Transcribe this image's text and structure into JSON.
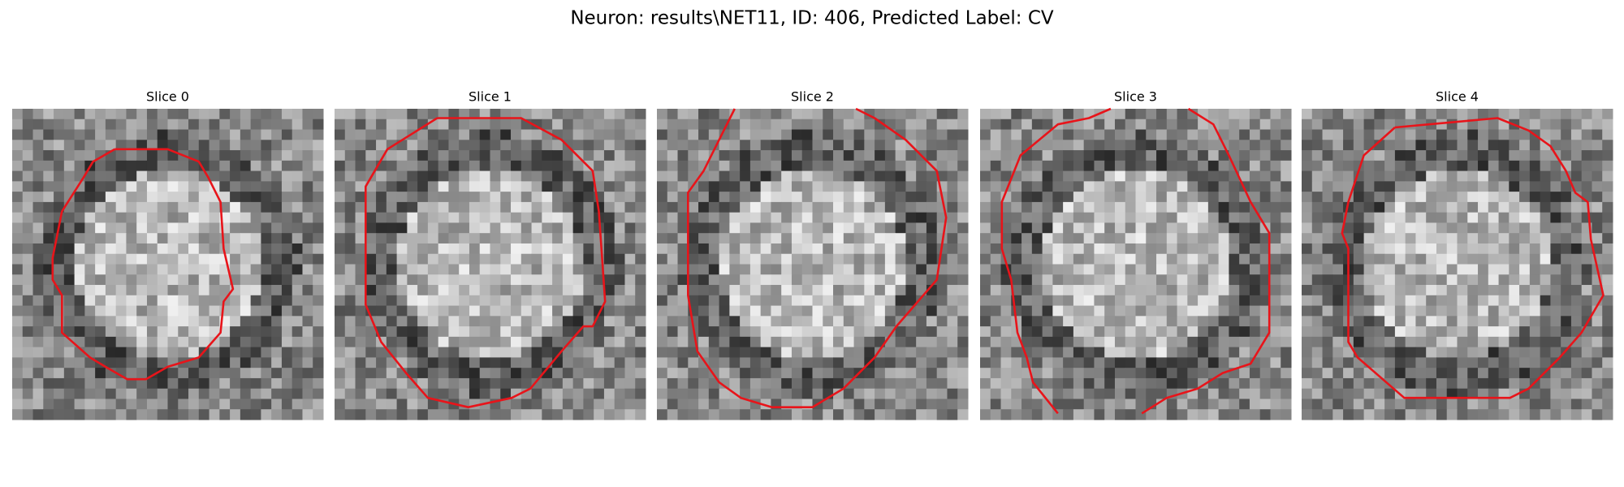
{
  "figure": {
    "title": "Neuron: results\\NET11, ID: 406, Predicted Label: CV",
    "panels": [
      {
        "title": "Slice 0"
      },
      {
        "title": "Slice 1"
      },
      {
        "title": "Slice 2"
      },
      {
        "title": "Slice 3"
      },
      {
        "title": "Slice 4"
      }
    ]
  }
}
